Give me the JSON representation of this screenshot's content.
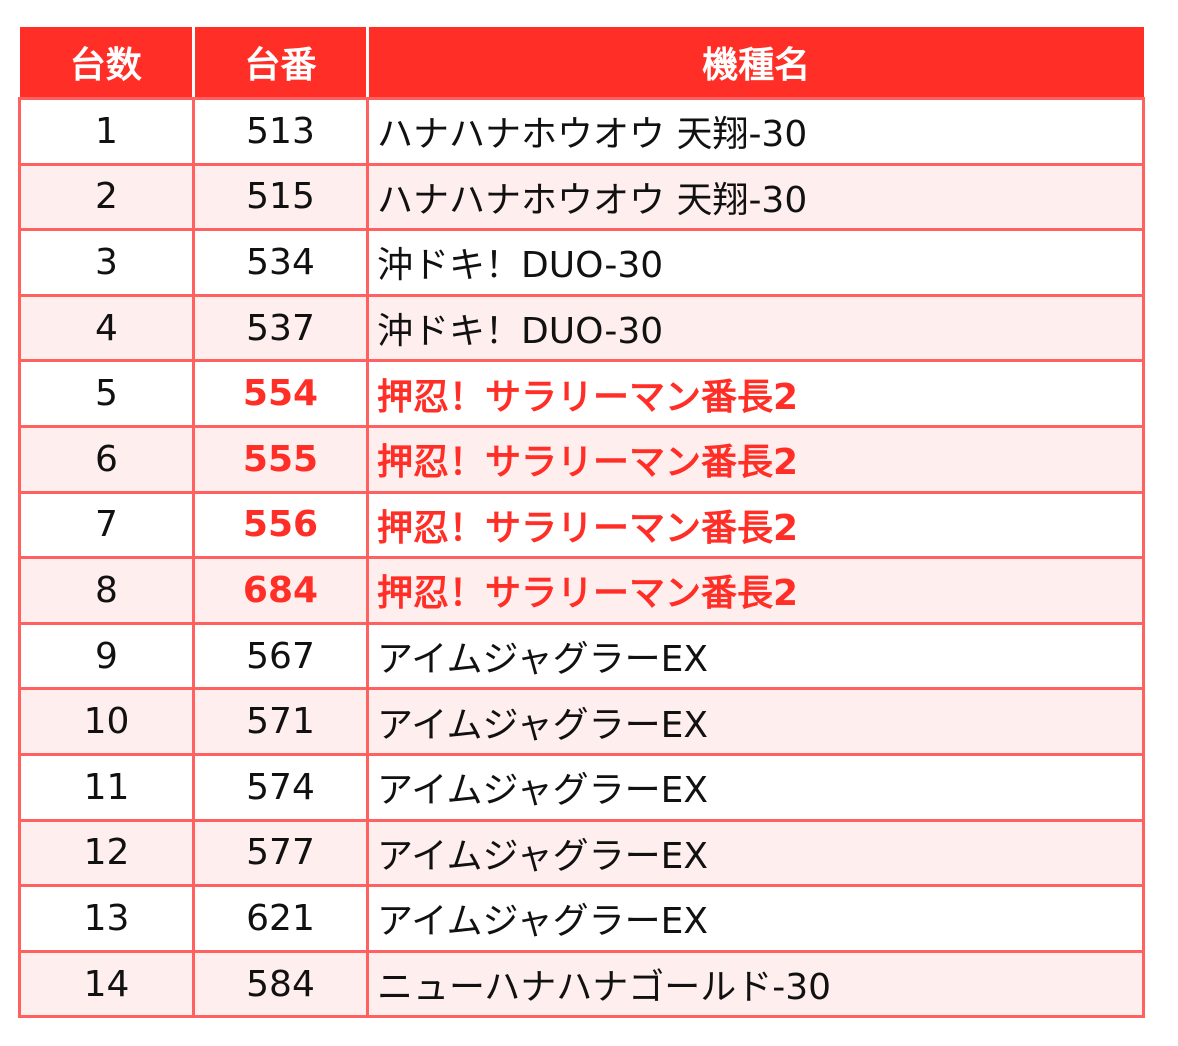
{
  "colors": {
    "header_bg": "#ff2e26",
    "border": "#ff6060",
    "alt_row": "#ffeeee",
    "highlight_text": "#ff2e26"
  },
  "headers": [
    "台数",
    "台番",
    "機種名"
  ],
  "rows": [
    {
      "count": "1",
      "number": "513",
      "machine": "ハナハナホウオウ 天翔-30",
      "highlight": false
    },
    {
      "count": "2",
      "number": "515",
      "machine": "ハナハナホウオウ 天翔-30",
      "highlight": false
    },
    {
      "count": "3",
      "number": "534",
      "machine": "沖ドキ！DUO-30",
      "highlight": false
    },
    {
      "count": "4",
      "number": "537",
      "machine": "沖ドキ！DUO-30",
      "highlight": false
    },
    {
      "count": "5",
      "number": "554",
      "machine": "押忍！サラリーマン番長2",
      "highlight": true
    },
    {
      "count": "6",
      "number": "555",
      "machine": "押忍！サラリーマン番長2",
      "highlight": true
    },
    {
      "count": "7",
      "number": "556",
      "machine": "押忍！サラリーマン番長2",
      "highlight": true
    },
    {
      "count": "8",
      "number": "684",
      "machine": "押忍！サラリーマン番長2",
      "highlight": true
    },
    {
      "count": "9",
      "number": "567",
      "machine": "アイムジャグラーEX",
      "highlight": false
    },
    {
      "count": "10",
      "number": "571",
      "machine": "アイムジャグラーEX",
      "highlight": false
    },
    {
      "count": "11",
      "number": "574",
      "machine": "アイムジャグラーEX",
      "highlight": false
    },
    {
      "count": "12",
      "number": "577",
      "machine": "アイムジャグラーEX",
      "highlight": false
    },
    {
      "count": "13",
      "number": "621",
      "machine": "アイムジャグラーEX",
      "highlight": false
    },
    {
      "count": "14",
      "number": "584",
      "machine": "ニューハナハナゴールド-30",
      "highlight": false
    }
  ]
}
